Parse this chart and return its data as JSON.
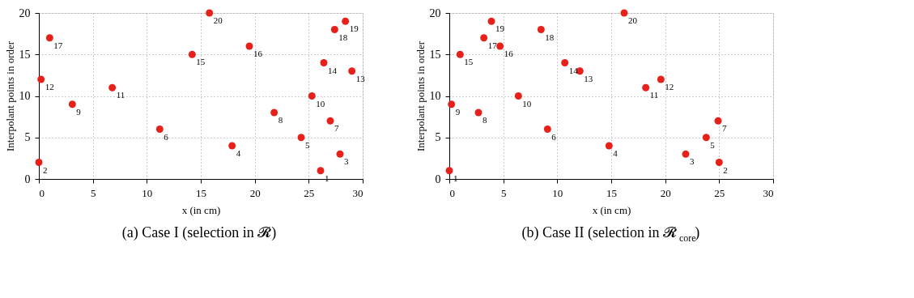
{
  "chart_data": [
    {
      "type": "scatter",
      "title": "(a) Case I (selection in 𝓡)",
      "xlabel": "x (in cm)",
      "ylabel": "Interpolant points in order",
      "series": [
        {
          "color": "#e8201a",
          "x": [
            26.1,
            0,
            27.9,
            17.9,
            24.3,
            11.2,
            27.0,
            21.8,
            3.1,
            25.3,
            6.8,
            0.2,
            29.0,
            26.4,
            14.2,
            19.5,
            1.0,
            27.4,
            28.4,
            15.8
          ],
          "values": [
            1,
            2,
            3,
            4,
            5,
            6,
            7,
            8,
            9,
            10,
            11,
            12,
            13,
            14,
            15,
            16,
            17,
            18,
            19,
            20
          ]
        }
      ],
      "xlim": [
        0,
        30
      ],
      "xticks": [
        0,
        5,
        10,
        15,
        20,
        25,
        30
      ],
      "ylim": [
        0,
        20
      ],
      "yticks": [
        0,
        5,
        10,
        15,
        20
      ],
      "grid": true,
      "marker": "circle",
      "data_labels": true
    },
    {
      "type": "scatter",
      "title": "(b) Case II (selection in 𝓡$_{core}$)",
      "xlabel": "x (in cm)",
      "ylabel": "Interpolant points in order",
      "series": [
        {
          "color": "#e8201a",
          "x": [
            0,
            25.0,
            21.9,
            14.8,
            23.8,
            9.1,
            24.9,
            2.7,
            0.2,
            6.4,
            18.2,
            19.6,
            12.1,
            10.7,
            1.0,
            4.7,
            3.2,
            8.5,
            3.9,
            16.2
          ],
          "values": [
            1,
            2,
            3,
            4,
            5,
            6,
            7,
            8,
            9,
            10,
            11,
            12,
            13,
            14,
            15,
            16,
            17,
            18,
            19,
            20
          ]
        }
      ],
      "xlim": [
        0,
        30
      ],
      "xticks": [
        0,
        5,
        10,
        15,
        20,
        25,
        30
      ],
      "ylim": [
        0,
        20
      ],
      "yticks": [
        0,
        5,
        10,
        15,
        20
      ],
      "grid": true,
      "marker": "circle",
      "data_labels": true
    }
  ]
}
